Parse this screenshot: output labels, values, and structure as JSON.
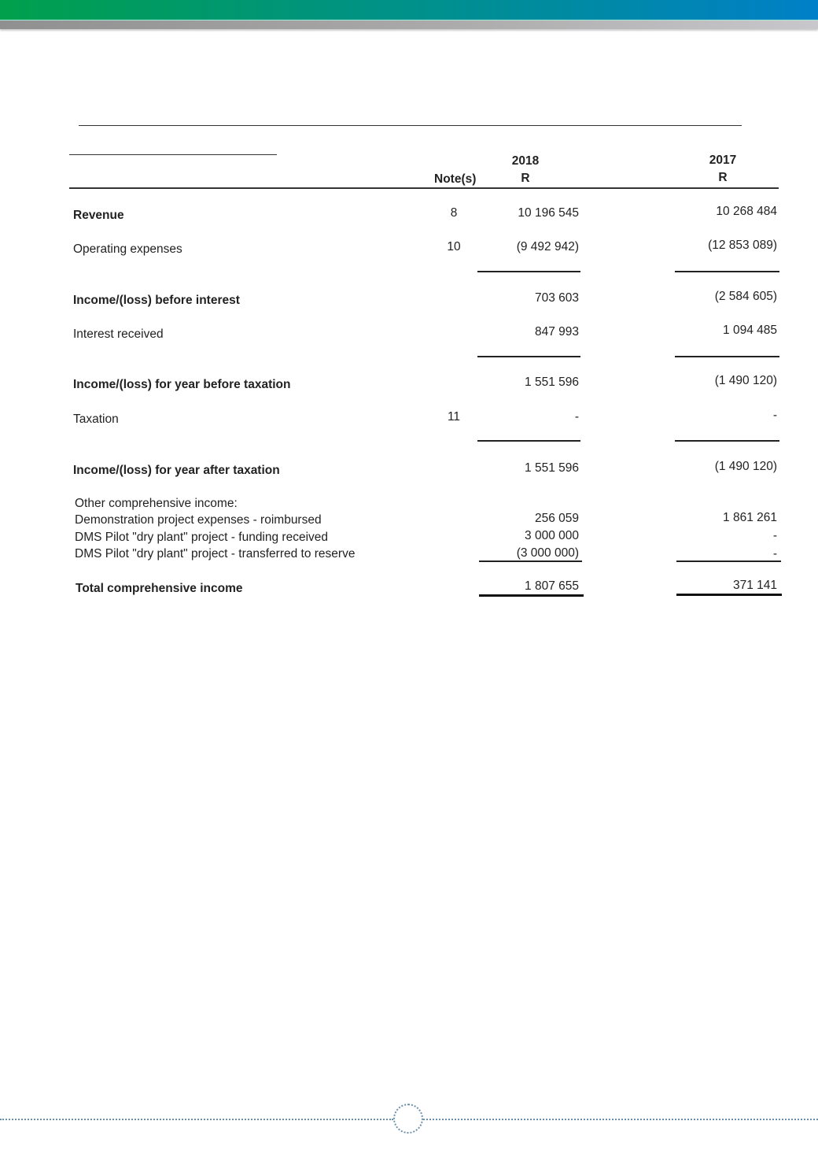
{
  "header": {
    "brand_gradient": [
      "#00a04c",
      "#0080c8"
    ]
  },
  "table": {
    "columns": {
      "notes": "Note(s)",
      "y2018": "2018",
      "y2018_unit": "R",
      "y2017": "2017",
      "y2017_unit": "R"
    },
    "rows": [
      {
        "label": "Revenue",
        "note": "8",
        "v2018": "10 196 545",
        "v2017": "10 268 484",
        "bold": true
      },
      {
        "label": "Operating expenses",
        "note": "10",
        "v2018": "(9 492 942)",
        "v2017": "(12 853 089)"
      },
      {
        "label": "Income/(loss) before interest",
        "note": "",
        "v2018": "703 603",
        "v2017": "(2 584 605)",
        "bold": true
      },
      {
        "label": "Interest received",
        "note": "",
        "v2018": "847 993",
        "v2017": "1 094 485"
      },
      {
        "label": "Income/(loss) for year before taxation",
        "note": "",
        "v2018": "1 551 596",
        "v2017": "(1 490 120)",
        "bold": true
      },
      {
        "label": "Taxation",
        "note": "11",
        "v2018": "-",
        "v2017": "-"
      },
      {
        "label": "Income/(loss) for year after taxation",
        "note": "",
        "v2018": "1 551 596",
        "v2017": "(1 490 120)",
        "bold": true
      }
    ],
    "oci": {
      "heading": "Other comprehensive income:",
      "items": [
        {
          "label": "Demonstration project expenses - roimbursed",
          "v2018": "256 059",
          "v2017": "1 861 261"
        },
        {
          "label": "DMS Pilot \"dry plant\" project - funding received",
          "v2018": "3 000 000",
          "v2017": "-"
        },
        {
          "label": "DMS Pilot \"dry plant\" project - transferred to reserve",
          "v2018": "(3 000 000)",
          "v2017": "-"
        }
      ]
    },
    "total": {
      "label": "Total comprehensive income",
      "v2018": "1 807 655",
      "v2017": "371 141"
    }
  }
}
